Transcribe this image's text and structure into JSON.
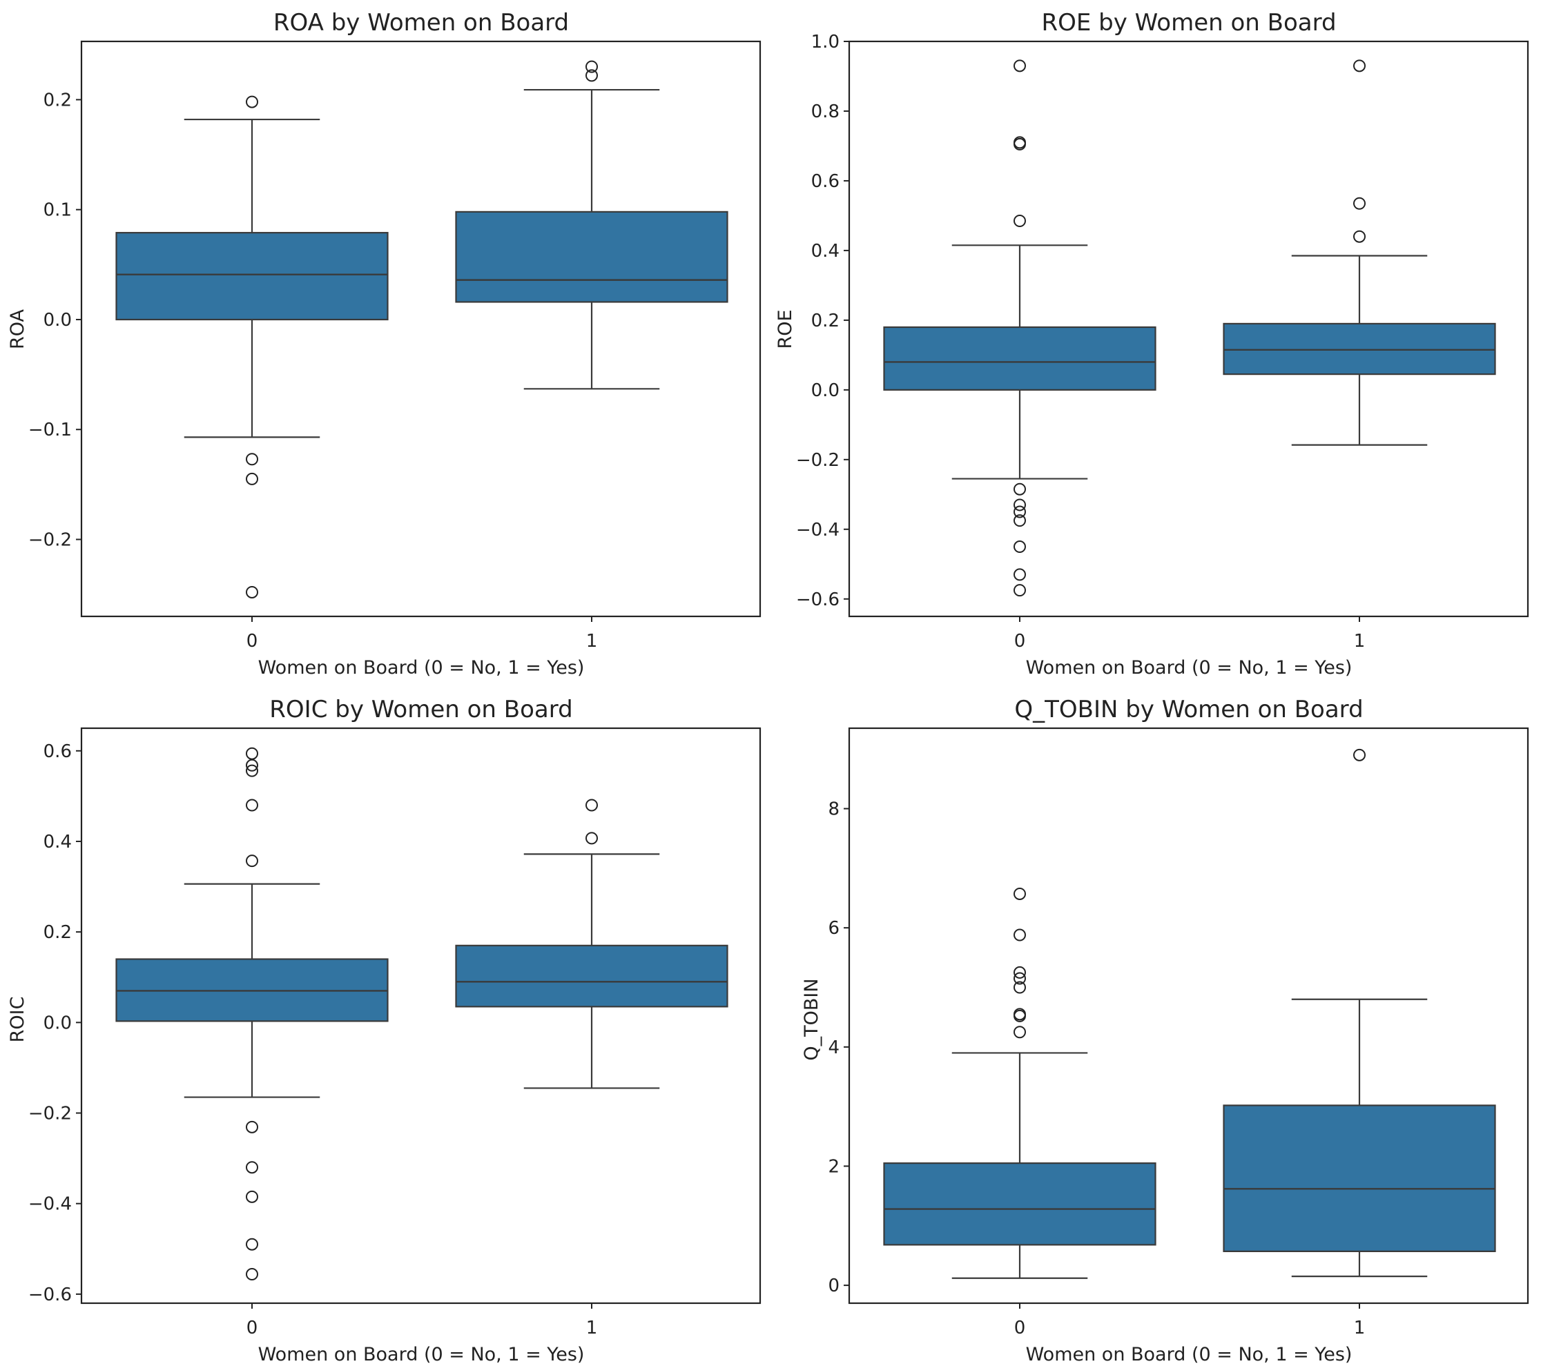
{
  "chart_data": [
    {
      "type": "box",
      "title": "ROA by Women on Board",
      "xlabel": "Women on Board (0 = No, 1 = Yes)",
      "ylabel": "ROA",
      "categories": [
        "0",
        "1"
      ],
      "ylim": [
        -0.27,
        0.253
      ],
      "yticks": [
        -0.2,
        -0.1,
        0.0,
        0.1,
        0.2
      ],
      "ytick_labels": [
        "−0.2",
        "−0.1",
        "0.0",
        "0.1",
        "0.2"
      ],
      "boxes": [
        {
          "category": "0",
          "whisker_low": -0.107,
          "q1": 0.0,
          "median": 0.041,
          "q3": 0.079,
          "whisker_high": 0.182,
          "fliers": [
            0.198,
            -0.127,
            -0.145,
            -0.248
          ]
        },
        {
          "category": "1",
          "whisker_low": -0.063,
          "q1": 0.016,
          "median": 0.036,
          "q3": 0.098,
          "whisker_high": 0.209,
          "fliers": [
            0.23,
            0.222
          ]
        }
      ]
    },
    {
      "type": "box",
      "title": "ROE by Women on Board",
      "xlabel": "Women on Board (0 = No, 1 = Yes)",
      "ylabel": "ROE",
      "categories": [
        "0",
        "1"
      ],
      "ylim": [
        -0.65,
        1.0
      ],
      "yticks": [
        -0.6,
        -0.4,
        -0.2,
        0.0,
        0.2,
        0.4,
        0.6,
        0.8,
        1.0
      ],
      "ytick_labels": [
        "−0.6",
        "−0.4",
        "−0.2",
        "0.0",
        "0.2",
        "0.4",
        "0.6",
        "0.8",
        "1.0"
      ],
      "boxes": [
        {
          "category": "0",
          "whisker_low": -0.255,
          "q1": 0.0,
          "median": 0.08,
          "q3": 0.18,
          "whisker_high": 0.415,
          "fliers": [
            0.93,
            0.71,
            0.705,
            0.485,
            -0.285,
            -0.33,
            -0.35,
            -0.375,
            -0.45,
            -0.53,
            -0.575
          ]
        },
        {
          "category": "1",
          "whisker_low": -0.158,
          "q1": 0.045,
          "median": 0.115,
          "q3": 0.19,
          "whisker_high": 0.385,
          "fliers": [
            0.93,
            0.535,
            0.44
          ]
        }
      ]
    },
    {
      "type": "box",
      "title": "ROIC by Women on Board",
      "xlabel": "Women on Board (0 = No, 1 = Yes)",
      "ylabel": "ROIC",
      "categories": [
        "0",
        "1"
      ],
      "ylim": [
        -0.62,
        0.65
      ],
      "yticks": [
        -0.6,
        -0.4,
        -0.2,
        0.0,
        0.2,
        0.4,
        0.6
      ],
      "ytick_labels": [
        "−0.6",
        "−0.4",
        "−0.2",
        "0.0",
        "0.2",
        "0.4",
        "0.6"
      ],
      "boxes": [
        {
          "category": "0",
          "whisker_low": -0.165,
          "q1": 0.003,
          "median": 0.07,
          "q3": 0.14,
          "whisker_high": 0.306,
          "fliers": [
            0.594,
            0.568,
            0.556,
            0.48,
            0.357,
            -0.231,
            -0.32,
            -0.385,
            -0.49,
            -0.556
          ]
        },
        {
          "category": "1",
          "whisker_low": -0.145,
          "q1": 0.035,
          "median": 0.09,
          "q3": 0.17,
          "whisker_high": 0.372,
          "fliers": [
            0.48,
            0.407
          ]
        }
      ]
    },
    {
      "type": "box",
      "title": "Q_TOBIN by Women on Board",
      "xlabel": "Women on Board (0 = No, 1 = Yes)",
      "ylabel": "Q_TOBIN",
      "categories": [
        "0",
        "1"
      ],
      "ylim": [
        -0.3,
        9.35
      ],
      "yticks": [
        0,
        2,
        4,
        6,
        8
      ],
      "ytick_labels": [
        "0",
        "2",
        "4",
        "6",
        "8"
      ],
      "boxes": [
        {
          "category": "0",
          "whisker_low": 0.12,
          "q1": 0.68,
          "median": 1.28,
          "q3": 2.05,
          "whisker_high": 3.9,
          "fliers": [
            6.57,
            5.88,
            5.25,
            5.15,
            5.0,
            4.55,
            4.52,
            4.25
          ]
        },
        {
          "category": "1",
          "whisker_low": 0.15,
          "q1": 0.57,
          "median": 1.62,
          "q3": 3.02,
          "whisker_high": 4.8,
          "fliers": [
            8.9
          ]
        }
      ]
    }
  ]
}
